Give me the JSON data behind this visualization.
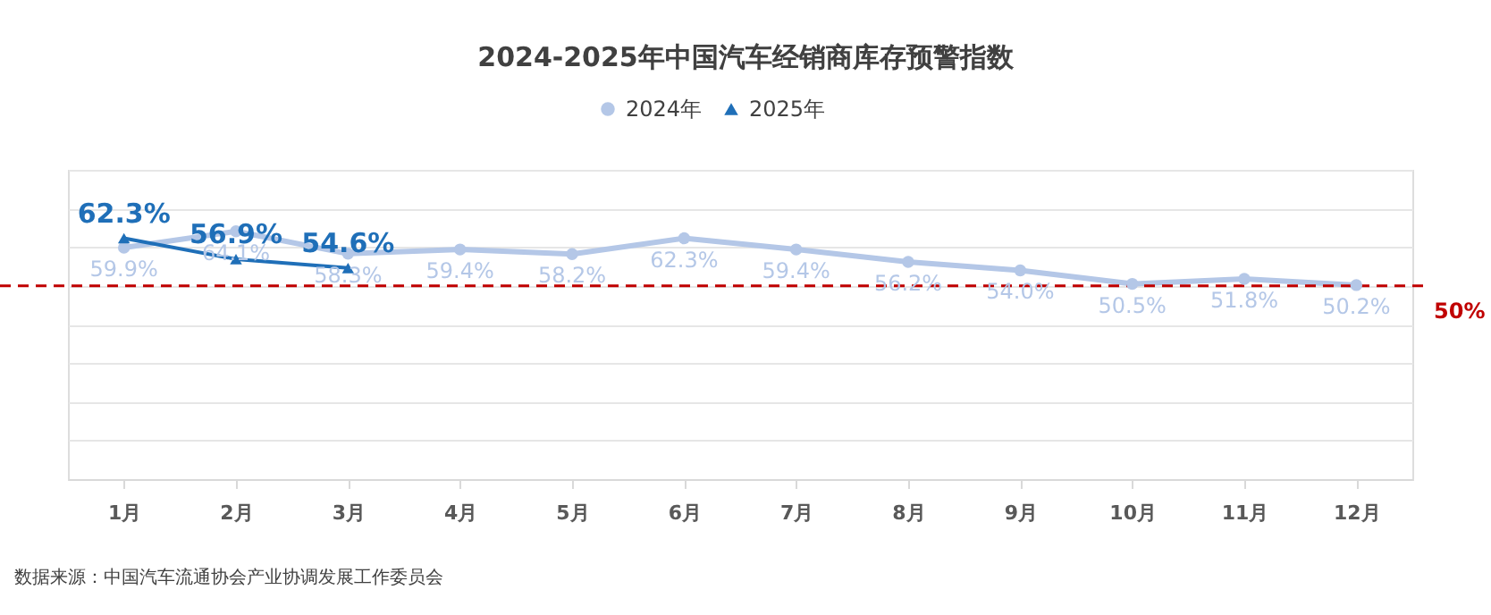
{
  "chart_data": {
    "type": "line",
    "title": "2024-2025年中国汽车经销商库存预警指数",
    "categories": [
      "1月",
      "2月",
      "3月",
      "4月",
      "5月",
      "6月",
      "7月",
      "8月",
      "9月",
      "10月",
      "11月",
      "12月"
    ],
    "series": [
      {
        "name": "2024年",
        "color": "#b4c7e7",
        "marker": "circle",
        "values": [
          59.9,
          64.1,
          58.3,
          59.4,
          58.2,
          62.3,
          59.4,
          56.2,
          54.0,
          50.5,
          51.8,
          50.2
        ],
        "value_labels": [
          "59.9%",
          "64.1%",
          "58.3%",
          "59.4%",
          "58.2%",
          "62.3%",
          "59.4%",
          "56.2%",
          "54.0%",
          "50.5%",
          "51.8%",
          "50.2%"
        ]
      },
      {
        "name": "2025年",
        "color": "#1f6fb8",
        "marker": "triangle",
        "values": [
          62.3,
          56.9,
          54.6,
          null,
          null,
          null,
          null,
          null,
          null,
          null,
          null,
          null
        ],
        "value_labels": [
          "62.3%",
          "56.9%",
          "54.6%",
          null,
          null,
          null,
          null,
          null,
          null,
          null,
          null,
          null
        ]
      }
    ],
    "ylim": [
      0,
      80
    ],
    "yticks": [
      {
        "value": 0,
        "label": null
      },
      {
        "value": 10,
        "label": null
      },
      {
        "value": 20,
        "label": null
      },
      {
        "value": 30,
        "label": null
      },
      {
        "value": 40,
        "label": null
      },
      {
        "value": 50,
        "label": null
      },
      {
        "value": 60,
        "label": null
      },
      {
        "value": 70,
        "label": null
      },
      {
        "value": 80,
        "label": null
      }
    ],
    "tick_labels": "x",
    "grid": "y",
    "legend": "top",
    "ref_lines": [
      {
        "axis": "y",
        "value": 50,
        "label": "50%",
        "color": "#c00000",
        "line_style": "dashed"
      }
    ],
    "annotations": [
      "数据来源：中国汽车流通协会产业协调发展工作委员会"
    ]
  }
}
